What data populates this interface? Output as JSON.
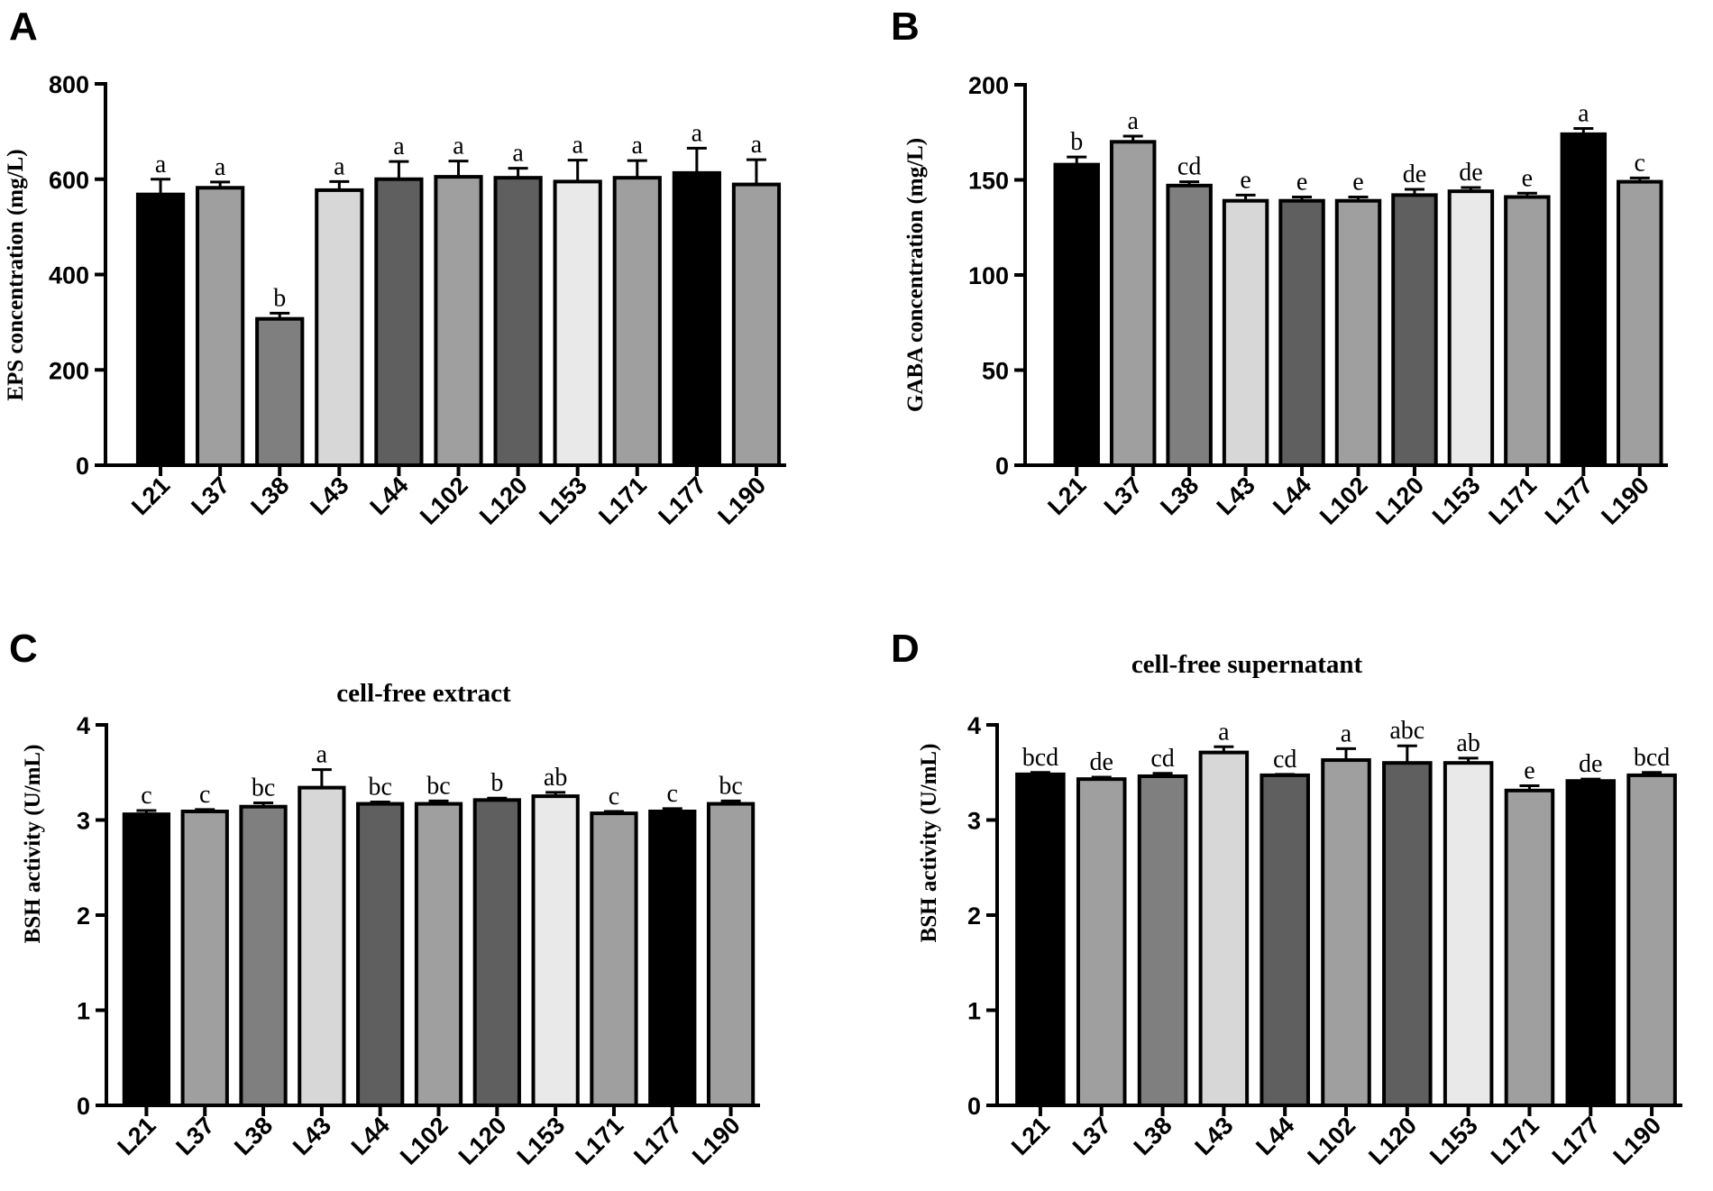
{
  "chart_data": [
    {
      "panel": "A",
      "type": "bar",
      "title": "",
      "xlabel": "",
      "ylabel": "EPS concentration (mg/L)",
      "ylim": [
        0,
        800
      ],
      "yticks": [
        0,
        200,
        400,
        600,
        800
      ],
      "categories": [
        "L21",
        "L37",
        "L38",
        "L43",
        "L44",
        "L102",
        "L120",
        "L153",
        "L171",
        "L177",
        "L190"
      ],
      "values": [
        568,
        582,
        307,
        577,
        600,
        605,
        603,
        595,
        603,
        613,
        589
      ],
      "errors": [
        32,
        12,
        12,
        18,
        37,
        33,
        20,
        45,
        36,
        52,
        52
      ],
      "letters": [
        "a",
        "a",
        "b",
        "a",
        "a",
        "a",
        "a",
        "a",
        "a",
        "a",
        "a"
      ],
      "colors": [
        "#000000",
        "#9f9f9f",
        "#7f7f7f",
        "#d7d7d7",
        "#5f5f5f",
        "#9f9f9f",
        "#5f5f5f",
        "#e9e9e9",
        "#9f9f9f",
        "#000000",
        "#9f9f9f"
      ]
    },
    {
      "panel": "B",
      "type": "bar",
      "title": "",
      "xlabel": "",
      "ylabel": "GABA concentration (mg/L)",
      "ylim": [
        0,
        200
      ],
      "yticks": [
        0,
        50,
        100,
        150,
        200
      ],
      "categories": [
        "L21",
        "L37",
        "L38",
        "L43",
        "L44",
        "L102",
        "L120",
        "L153",
        "L171",
        "L177",
        "L190"
      ],
      "values": [
        158,
        170,
        147,
        139,
        139,
        139,
        142,
        144,
        141,
        174,
        149
      ],
      "errors": [
        4,
        3,
        2,
        3,
        2,
        2,
        3,
        2,
        2,
        3,
        2
      ],
      "letters": [
        "b",
        "a",
        "cd",
        "e",
        "e",
        "e",
        "de",
        "de",
        "e",
        "a",
        "c"
      ],
      "colors": [
        "#000000",
        "#9f9f9f",
        "#7f7f7f",
        "#d7d7d7",
        "#5f5f5f",
        "#9f9f9f",
        "#5f5f5f",
        "#e9e9e9",
        "#9f9f9f",
        "#000000",
        "#9f9f9f"
      ]
    },
    {
      "panel": "C",
      "type": "bar",
      "title": "cell-free extract",
      "xlabel": "",
      "ylabel": "BSH activity (U/mL)",
      "ylim": [
        0,
        4
      ],
      "yticks": [
        0,
        1,
        2,
        3,
        4
      ],
      "categories": [
        "L21",
        "L37",
        "L38",
        "L43",
        "L44",
        "L102",
        "L120",
        "L153",
        "L171",
        "L177",
        "L190"
      ],
      "values": [
        3.06,
        3.09,
        3.14,
        3.34,
        3.17,
        3.17,
        3.21,
        3.25,
        3.07,
        3.09,
        3.17
      ],
      "errors": [
        0.04,
        0.02,
        0.04,
        0.19,
        0.02,
        0.03,
        0.02,
        0.04,
        0.02,
        0.03,
        0.03
      ],
      "letters": [
        "c",
        "c",
        "bc",
        "a",
        "bc",
        "bc",
        "b",
        "ab",
        "c",
        "c",
        "bc"
      ],
      "colors": [
        "#000000",
        "#9f9f9f",
        "#7f7f7f",
        "#d7d7d7",
        "#5f5f5f",
        "#9f9f9f",
        "#5f5f5f",
        "#e9e9e9",
        "#9f9f9f",
        "#000000",
        "#9f9f9f"
      ]
    },
    {
      "panel": "D",
      "type": "bar",
      "title": "cell-free supernatant",
      "xlabel": "",
      "ylabel": "BSH activity (U/mL)",
      "ylim": [
        0,
        4
      ],
      "yticks": [
        0,
        1,
        2,
        3,
        4
      ],
      "categories": [
        "L21",
        "L37",
        "L38",
        "L43",
        "L44",
        "L102",
        "L120",
        "L153",
        "L171",
        "L177",
        "L190"
      ],
      "values": [
        3.48,
        3.43,
        3.46,
        3.71,
        3.47,
        3.63,
        3.6,
        3.6,
        3.31,
        3.41,
        3.47
      ],
      "errors": [
        0.02,
        0.02,
        0.03,
        0.06,
        0.01,
        0.12,
        0.18,
        0.05,
        0.05,
        0.02,
        0.03
      ],
      "letters": [
        "bcd",
        "de",
        "cd",
        "a",
        "cd",
        "a",
        "abc",
        "ab",
        "e",
        "de",
        "bcd"
      ],
      "colors": [
        "#000000",
        "#9f9f9f",
        "#7f7f7f",
        "#d7d7d7",
        "#5f5f5f",
        "#9f9f9f",
        "#5f5f5f",
        "#e9e9e9",
        "#9f9f9f",
        "#000000",
        "#9f9f9f"
      ]
    }
  ]
}
